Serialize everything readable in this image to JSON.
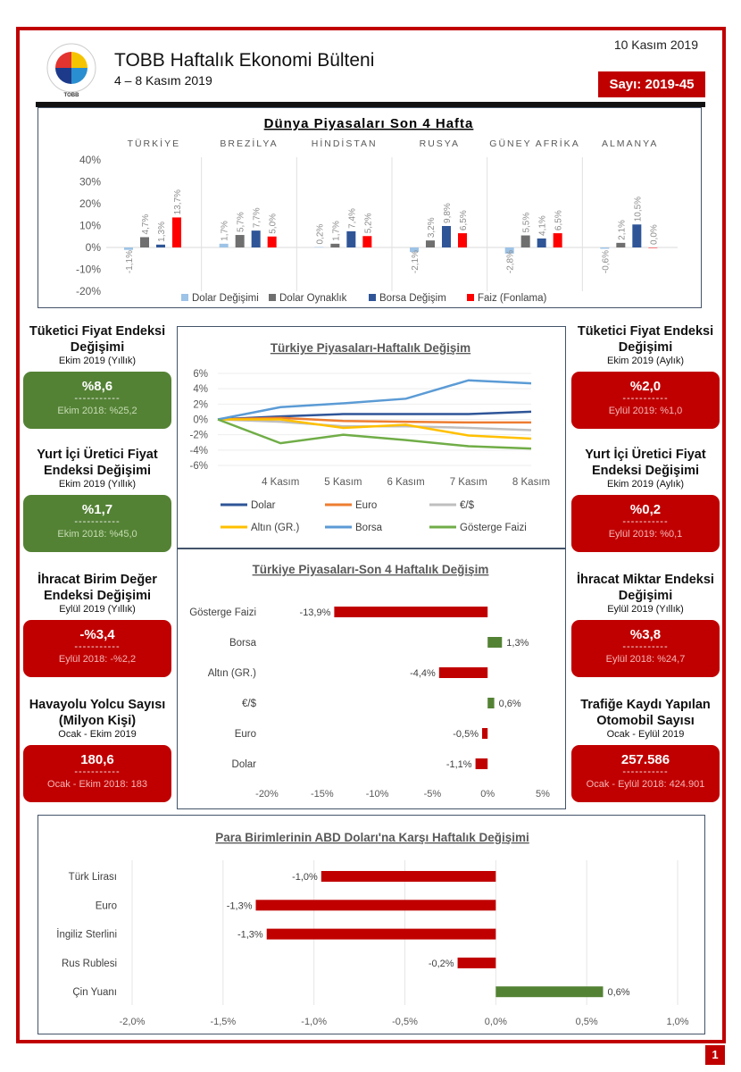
{
  "header": {
    "title": "TOBB Haftalık Ekonomi Bülteni",
    "period": "4 – 8 Kasım 2019",
    "date": "10 Kasım 2019",
    "issue": "Sayı: 2019-45",
    "logo_text": "TOBB"
  },
  "left_cards": [
    {
      "title": "Tüketici Fiyat Endeksi Değişimi",
      "sub": "Ekim 2019 (Yıllık)",
      "value": "%8,6",
      "dash": "-----------",
      "prev": "Ekim 2018: %25,2",
      "status": "green"
    },
    {
      "title": "Yurt İçi Üretici Fiyat Endeksi Değişimi",
      "sub": "Ekim 2019 (Yıllık)",
      "value": "%1,7",
      "dash": "-----------",
      "prev": "Ekim 2018: %45,0",
      "status": "green"
    },
    {
      "title": "İhracat Birim Değer Endeksi Değişimi",
      "sub": "Eylül 2019 (Yıllık)",
      "value": "-%3,4",
      "dash": "-----------",
      "prev": "Eylül 2018: -%2,2",
      "status": "red"
    },
    {
      "title": "Havayolu Yolcu Sayısı (Milyon Kişi)",
      "sub": "Ocak - Ekim 2019",
      "value": "180,6",
      "dash": "-----------",
      "prev": "Ocak - Ekim 2018: 183",
      "status": "red"
    }
  ],
  "right_cards": [
    {
      "title": "Tüketici Fiyat Endeksi Değişimi",
      "sub": "Ekim 2019 (Aylık)",
      "value": "%2,0",
      "dash": "-----------",
      "prev": "Eylül 2019: %1,0",
      "status": "red"
    },
    {
      "title": "Yurt İçi Üretici Fiyat Endeksi Değişimi",
      "sub": "Ekim 2019 (Aylık)",
      "value": "%0,2",
      "dash": "-----------",
      "prev": "Eylül 2019: %0,1",
      "status": "red"
    },
    {
      "title": "İhracat Miktar Endeksi Değişimi",
      "sub": "Eylül 2019  (Yıllık)",
      "value": "%3,8",
      "dash": "-----------",
      "prev": "Eylül 2018: %24,7",
      "status": "red"
    },
    {
      "title": "Trafiğe Kaydı Yapılan Otomobil Sayısı",
      "sub": "Ocak - Eylül 2019",
      "value": "257.586",
      "dash": "-----------",
      "prev": "Ocak - Eylül 2018: 424.901",
      "status": "red"
    }
  ],
  "page_number": "1",
  "colors": {
    "accent": "#c00000",
    "green": "#548235"
  },
  "chart_data": [
    {
      "type": "bar",
      "title": "Dünya Piyasaları Son 4 Hafta",
      "categories": [
        "TÜRKİYE",
        "BREZİLYA",
        "HİNDİSTAN",
        "RUSYA",
        "GÜNEY AFRİKA",
        "ALMANYA"
      ],
      "ylim": [
        -20,
        40
      ],
      "yticks": [
        40,
        30,
        20,
        10,
        0,
        -10,
        -20
      ],
      "legend": "bottom",
      "series": [
        {
          "name": "Dolar Değişimi",
          "color": "#9dc3e6",
          "values": [
            -1.1,
            1.7,
            0.2,
            -2.1,
            -2.8,
            -0.6
          ]
        },
        {
          "name": "Dolar Oynaklık",
          "color": "#6f6f6f",
          "values": [
            4.7,
            5.7,
            1.7,
            3.2,
            5.5,
            2.1
          ]
        },
        {
          "name": "Borsa Değişim",
          "color": "#2f5597",
          "values": [
            1.3,
            7.7,
            7.4,
            9.8,
            4.1,
            10.5
          ]
        },
        {
          "name": "Faiz (Fonlama)",
          "color": "#ff0000",
          "values": [
            13.7,
            5.0,
            5.2,
            6.5,
            6.5,
            0.0
          ]
        }
      ]
    },
    {
      "type": "line",
      "title": "Türkiye Piyasaları-Haftalık Değişim",
      "x": [
        "",
        "4 Kasım",
        "5 Kasım",
        "6 Kasım",
        "7 Kasım",
        "8 Kasım"
      ],
      "ylim": [
        -6,
        6
      ],
      "yticks": [
        6,
        4,
        2,
        0,
        -2,
        -4,
        -6
      ],
      "legend": "bottom",
      "series": [
        {
          "name": "Dolar",
          "color": "#2f5597",
          "values": [
            0,
            0.4,
            0.7,
            0.7,
            0.7,
            1.0
          ]
        },
        {
          "name": "Euro",
          "color": "#ed7d31",
          "values": [
            0,
            0.2,
            -0.2,
            -0.3,
            -0.4,
            -0.4
          ]
        },
        {
          "name": "€/$",
          "color": "#bfbfbf",
          "values": [
            0,
            -0.3,
            -0.9,
            -0.9,
            -1.1,
            -1.4
          ]
        },
        {
          "name": "Altın (GR.)",
          "color": "#ffc000",
          "values": [
            0,
            0,
            -1.1,
            -0.7,
            -2.1,
            -2.5
          ]
        },
        {
          "name": "Borsa",
          "color": "#5b9bd5",
          "values": [
            0,
            1.6,
            2.1,
            2.7,
            5.1,
            4.7
          ]
        },
        {
          "name": "Gösterge Faizi",
          "color": "#70ad47",
          "values": [
            0,
            -3.1,
            -2.0,
            -2.7,
            -3.5,
            -3.8
          ]
        }
      ]
    },
    {
      "type": "bar",
      "orientation": "horizontal",
      "title": "Türkiye Piyasaları-Son 4 Haftalık Değişim",
      "categories": [
        "Gösterge Faizi",
        "Borsa",
        "Altın (GR.)",
        "€/$",
        "Euro",
        "Dolar"
      ],
      "values": [
        -13.9,
        1.3,
        -4.4,
        0.6,
        -0.5,
        -1.1
      ],
      "xlim": [
        -20,
        5
      ],
      "xticks": [
        "-20%",
        "-15%",
        "-10%",
        "-5%",
        "0%",
        "5%"
      ],
      "xtick_values": [
        -20,
        -15,
        -10,
        -5,
        0,
        5
      ]
    },
    {
      "type": "bar",
      "orientation": "horizontal",
      "title": "Para Birimlerinin ABD Doları'na Karşı Haftalık Değişimi",
      "categories": [
        "Türk Lirası",
        "Euro",
        "İngiliz Sterlini",
        "Rus Rublesi",
        "Çin Yuanı"
      ],
      "values": [
        -0.96,
        -1.32,
        -1.26,
        -0.21,
        0.59
      ],
      "xlim": [
        -2,
        1
      ],
      "xticks": [
        "-2,0%",
        "-1,5%",
        "-1,0%",
        "-0,5%",
        "0,0%",
        "0,5%",
        "1,0%"
      ],
      "xtick_values": [
        -2,
        -1.5,
        -1,
        -0.5,
        0,
        0.5,
        1
      ]
    }
  ]
}
